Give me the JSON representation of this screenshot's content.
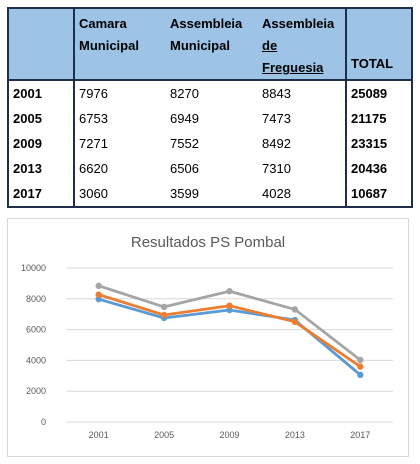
{
  "table": {
    "headers": [
      {
        "line1": "",
        "line2": ""
      },
      {
        "line1": "Camara",
        "line2": "Municipal"
      },
      {
        "line1": "Assembleia",
        "line2": "Municipal"
      },
      {
        "line1": "Assembleia",
        "line2": "de Freguesia"
      },
      {
        "line1": "",
        "line2": "TOTAL"
      }
    ],
    "rows": [
      {
        "year": "2001",
        "camara": "7976",
        "assembleia_municipal": "8270",
        "assembleia_freguesia": "8843",
        "total": "25089"
      },
      {
        "year": "2005",
        "camara": "6753",
        "assembleia_municipal": "6949",
        "assembleia_freguesia": "7473",
        "total": "21175"
      },
      {
        "year": "2009",
        "camara": "7271",
        "assembleia_municipal": "7552",
        "assembleia_freguesia": "8492",
        "total": "23315"
      },
      {
        "year": "2013",
        "camara": "6620",
        "assembleia_municipal": "6506",
        "assembleia_freguesia": "7310",
        "total": "20436"
      },
      {
        "year": "2017",
        "camara": "3060",
        "assembleia_municipal": "3599",
        "assembleia_freguesia": "4028",
        "total": "10687"
      }
    ]
  },
  "chart_data": {
    "type": "line",
    "title": "Resultados PS Pombal",
    "categories": [
      "2001",
      "2005",
      "2009",
      "2013",
      "2017"
    ],
    "ylim": [
      0,
      10000
    ],
    "yticks": [
      0,
      2000,
      4000,
      6000,
      8000,
      10000
    ],
    "grid": true,
    "legend": "none",
    "series": [
      {
        "values": [
          7976,
          6753,
          7271,
          6620,
          3060
        ],
        "color": "#5b9bd5"
      },
      {
        "values": [
          8270,
          6949,
          7552,
          6506,
          3599
        ],
        "color": "#ed7d31"
      },
      {
        "values": [
          8843,
          7473,
          8492,
          7310,
          4028
        ],
        "color": "#a5a5a5"
      }
    ]
  }
}
